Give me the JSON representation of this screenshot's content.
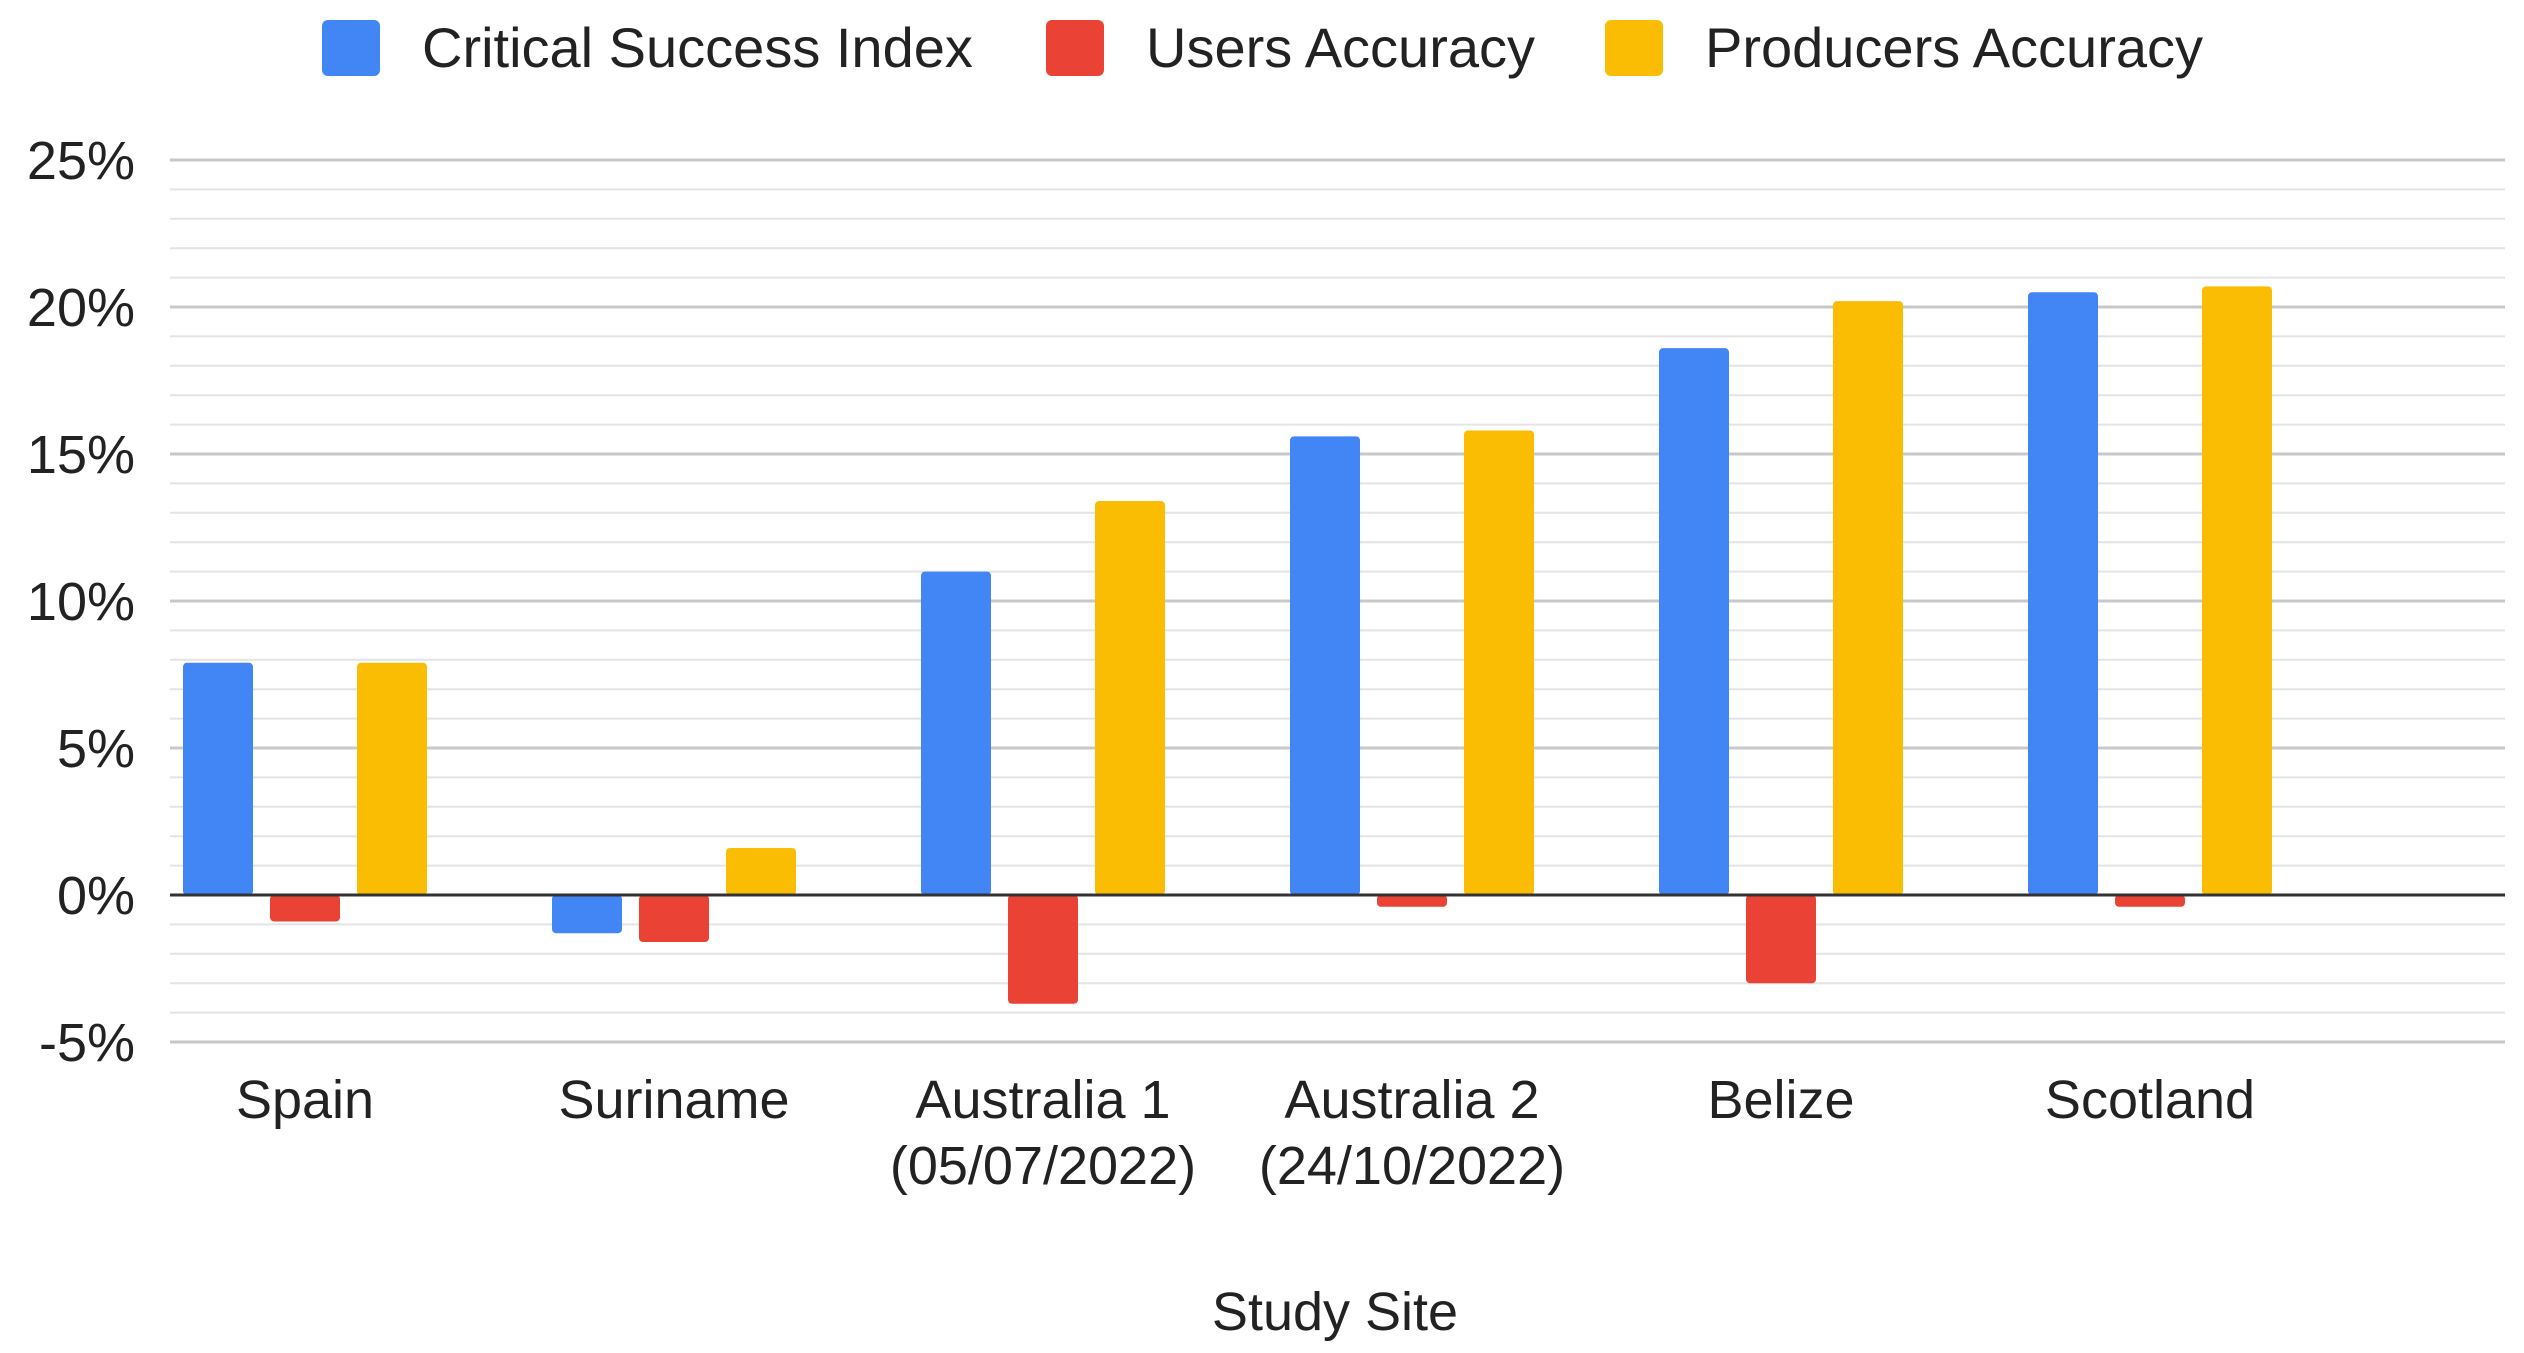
{
  "chart_data": {
    "type": "bar",
    "title": "",
    "xlabel": "Study Site",
    "ylabel": "",
    "ylim": [
      -5,
      25
    ],
    "y_ticks": [
      25,
      20,
      15,
      10,
      5,
      0,
      -5
    ],
    "y_tick_format": "%",
    "y_minor_step": 1,
    "grid": true,
    "legend_position": "top",
    "categories": [
      [
        "Spain"
      ],
      [
        "Suriname"
      ],
      [
        "Australia 1",
        "(05/07/2022)"
      ],
      [
        "Australia 2",
        "(24/10/2022)"
      ],
      [
        "Belize"
      ],
      [
        "Scotland"
      ]
    ],
    "series": [
      {
        "name": "Critical Success Index",
        "color": "#4285f4",
        "values": [
          7.9,
          -1.3,
          11.0,
          15.6,
          18.6,
          20.5
        ]
      },
      {
        "name": "Users Accuracy",
        "color": "#ea4335",
        "values": [
          -0.9,
          -1.6,
          -3.7,
          -0.4,
          -3.0,
          -0.4
        ]
      },
      {
        "name": "Producers Accuracy",
        "color": "#fbbc04",
        "values": [
          7.9,
          1.6,
          13.4,
          15.8,
          20.2,
          20.7
        ]
      }
    ]
  }
}
